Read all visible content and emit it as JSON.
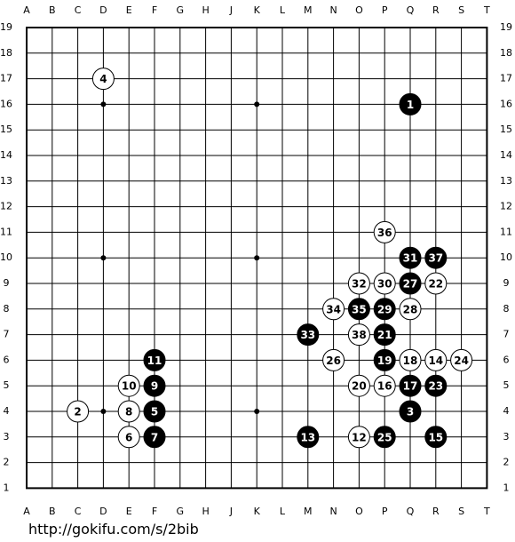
{
  "board": {
    "columns": [
      "A",
      "B",
      "C",
      "D",
      "E",
      "F",
      "G",
      "H",
      "J",
      "K",
      "L",
      "M",
      "N",
      "O",
      "P",
      "Q",
      "R",
      "S",
      "T"
    ],
    "rows": [
      19,
      18,
      17,
      16,
      15,
      14,
      13,
      12,
      11,
      10,
      9,
      8,
      7,
      6,
      5,
      4,
      3,
      2,
      1
    ],
    "star_points": [
      "D16",
      "K16",
      "Q16",
      "D10",
      "K10",
      "Q10",
      "D4",
      "K4",
      "Q4"
    ],
    "stones": [
      {
        "number": 1,
        "color": "black",
        "point": "Q16"
      },
      {
        "number": 2,
        "color": "white",
        "point": "C4"
      },
      {
        "number": 3,
        "color": "black",
        "point": "Q4"
      },
      {
        "number": 4,
        "color": "white",
        "point": "D17"
      },
      {
        "number": 5,
        "color": "black",
        "point": "F4"
      },
      {
        "number": 6,
        "color": "white",
        "point": "E3"
      },
      {
        "number": 7,
        "color": "black",
        "point": "F3"
      },
      {
        "number": 8,
        "color": "white",
        "point": "E4"
      },
      {
        "number": 9,
        "color": "black",
        "point": "F5"
      },
      {
        "number": 10,
        "color": "white",
        "point": "E5"
      },
      {
        "number": 11,
        "color": "black",
        "point": "F6"
      },
      {
        "number": 12,
        "color": "white",
        "point": "O3"
      },
      {
        "number": 13,
        "color": "black",
        "point": "M3"
      },
      {
        "number": 14,
        "color": "white",
        "point": "R6"
      },
      {
        "number": 15,
        "color": "black",
        "point": "R3"
      },
      {
        "number": 16,
        "color": "white",
        "point": "P5"
      },
      {
        "number": 17,
        "color": "black",
        "point": "Q5"
      },
      {
        "number": 18,
        "color": "white",
        "point": "Q6"
      },
      {
        "number": 19,
        "color": "black",
        "point": "P6"
      },
      {
        "number": 20,
        "color": "white",
        "point": "O5"
      },
      {
        "number": 21,
        "color": "black",
        "point": "P7"
      },
      {
        "number": 22,
        "color": "white",
        "point": "R9"
      },
      {
        "number": 23,
        "color": "black",
        "point": "R5"
      },
      {
        "number": 24,
        "color": "white",
        "point": "S6"
      },
      {
        "number": 25,
        "color": "black",
        "point": "P3"
      },
      {
        "number": 26,
        "color": "white",
        "point": "N6"
      },
      {
        "number": 27,
        "color": "black",
        "point": "Q9"
      },
      {
        "number": 28,
        "color": "white",
        "point": "Q8"
      },
      {
        "number": 29,
        "color": "black",
        "point": "P8"
      },
      {
        "number": 30,
        "color": "white",
        "point": "P9"
      },
      {
        "number": 31,
        "color": "black",
        "point": "Q10"
      },
      {
        "number": 32,
        "color": "white",
        "point": "O9"
      },
      {
        "number": 33,
        "color": "black",
        "point": "M7"
      },
      {
        "number": 34,
        "color": "white",
        "point": "N8"
      },
      {
        "number": 35,
        "color": "black",
        "point": "O8"
      },
      {
        "number": 36,
        "color": "white",
        "point": "P11"
      },
      {
        "number": 37,
        "color": "black",
        "point": "R10"
      },
      {
        "number": 38,
        "color": "white",
        "point": "O7"
      }
    ]
  },
  "footer": {
    "url": "http://gokifu.com/s/2bib"
  }
}
